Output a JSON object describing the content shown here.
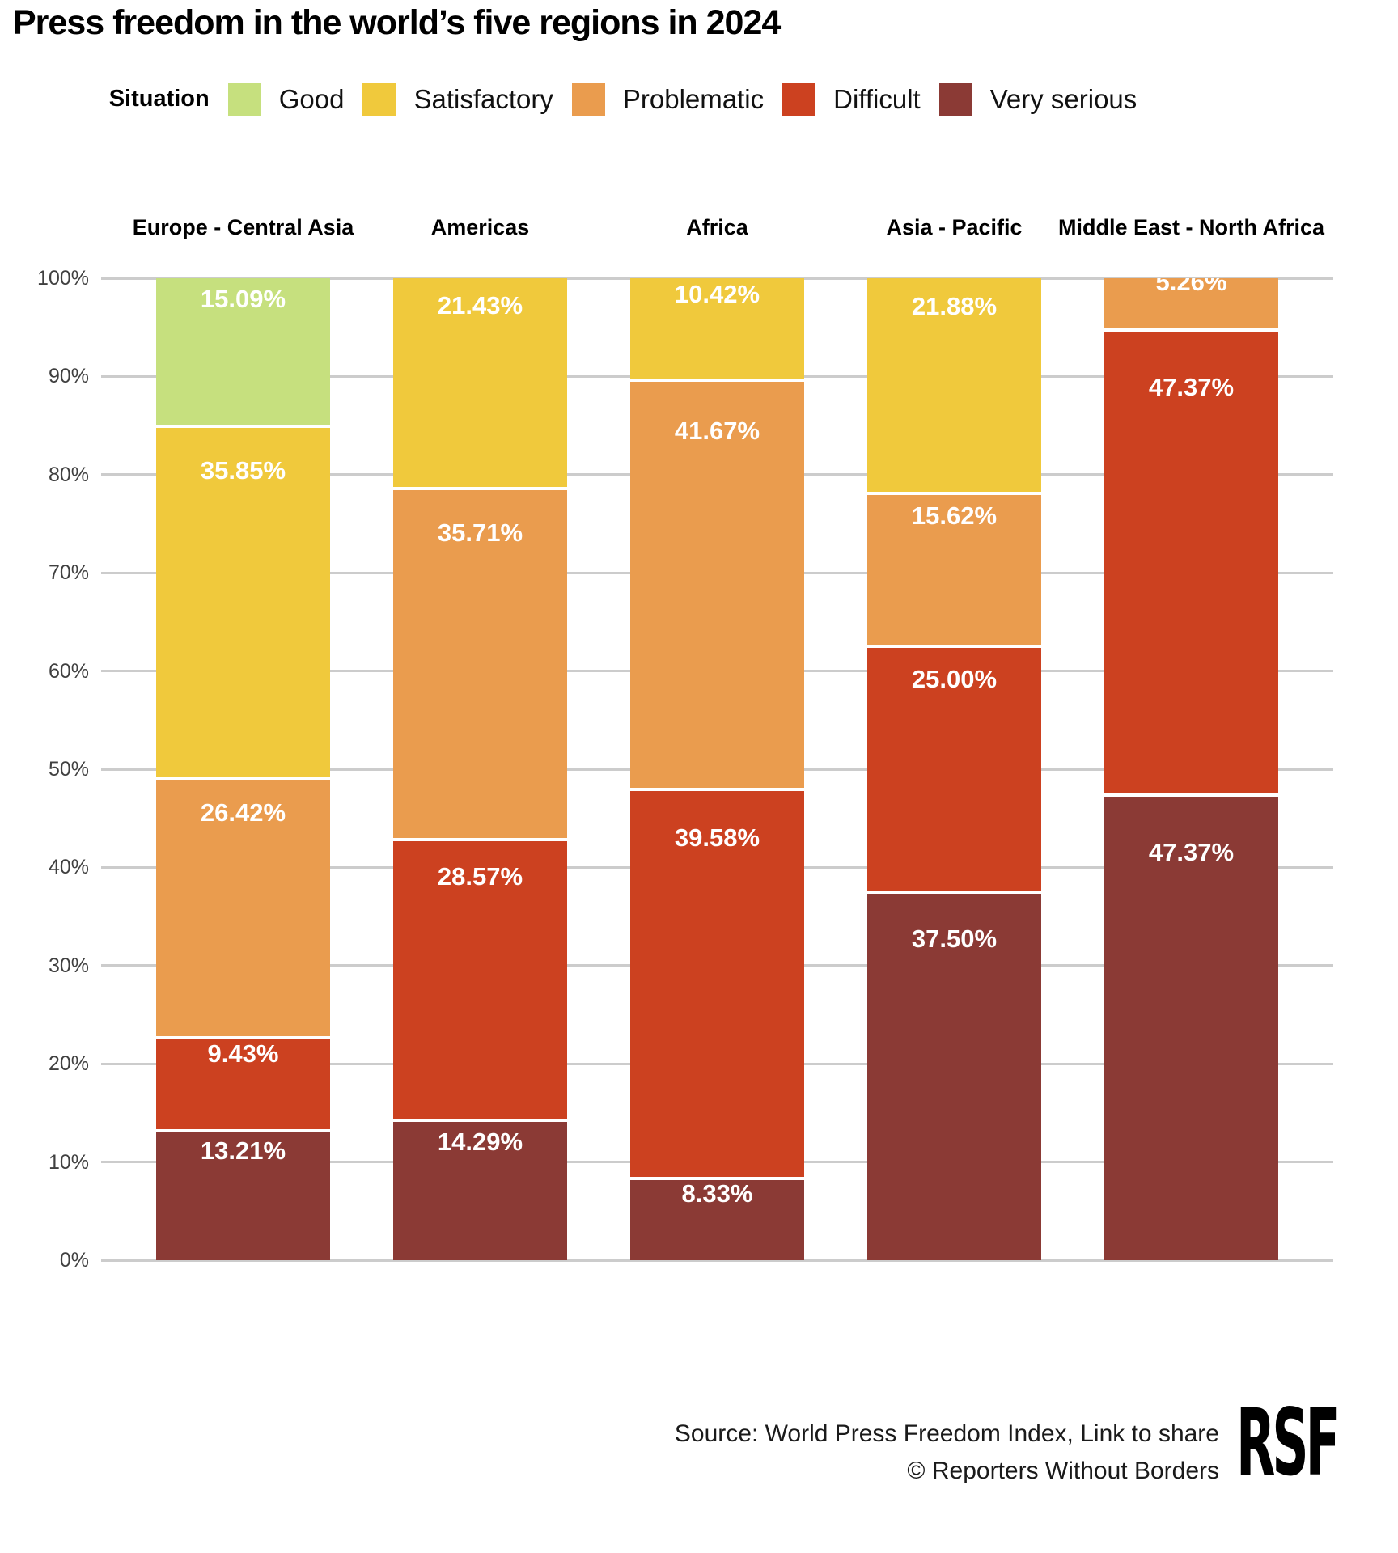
{
  "title": "Press freedom in the world’s five regions in 2024",
  "legend": {
    "label": "Situation"
  },
  "y_axis_ticks": [
    "100%",
    "90%",
    "80%",
    "70%",
    "60%",
    "50%",
    "40%",
    "30%",
    "20%",
    "10%",
    "0%"
  ],
  "chart_data": {
    "type": "bar",
    "stacked": true,
    "title": "Press freedom in the world’s five regions in 2024",
    "categories": [
      "Europe - Central Asia",
      "Americas",
      "Africa",
      "Asia - Pacific",
      "Middle East - North Africa"
    ],
    "series": [
      {
        "name": "Good",
        "color": "#c6e07e",
        "values": [
          15.09,
          null,
          null,
          null,
          null
        ]
      },
      {
        "name": "Satisfactory",
        "color": "#f0c93c",
        "values": [
          35.85,
          21.43,
          10.42,
          21.88,
          null
        ]
      },
      {
        "name": "Problematic",
        "color": "#ea9c4e",
        "values": [
          26.42,
          35.71,
          41.67,
          15.62,
          5.26
        ]
      },
      {
        "name": "Difficult",
        "color": "#cc4120",
        "values": [
          9.43,
          28.57,
          39.58,
          25.0,
          47.37
        ]
      },
      {
        "name": "Very serious",
        "color": "#8b3a35",
        "values": [
          13.21,
          14.29,
          8.33,
          37.5,
          47.37
        ]
      }
    ],
    "ylim": [
      0,
      100
    ],
    "value_suffix": "%",
    "value_decimals": 2,
    "grid": true,
    "legend_position": "top",
    "data_label_position": "inside-top"
  },
  "footer": {
    "source_prefix": "Source: World Press Freedom Index, ",
    "share_link_text": "Link to share",
    "copyright_text": "© Reporters Without Borders",
    "logo_text": "RSF"
  }
}
